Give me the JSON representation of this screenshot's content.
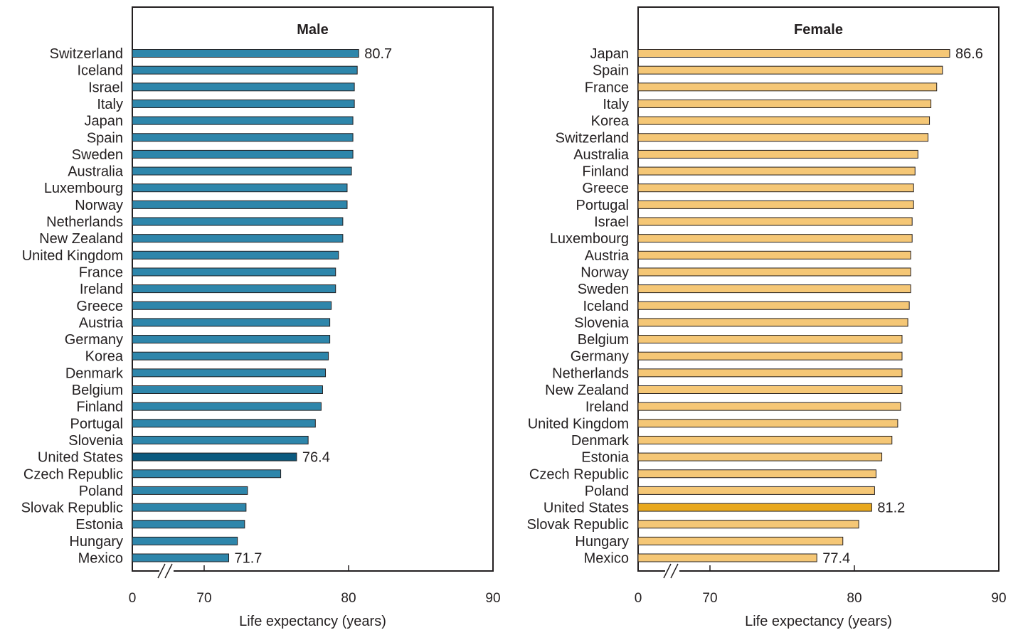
{
  "chart_data": [
    {
      "type": "bar",
      "orientation": "horizontal",
      "title": "Male",
      "xlabel": "Life expectancy (years)",
      "xlim": [
        0,
        90
      ],
      "axis_break": true,
      "x_ticks": [
        "0",
        "70",
        "80",
        "90"
      ],
      "color": "#2e86ab",
      "highlight_color": "#0b5a7f",
      "highlight": "United States",
      "categories": [
        "Switzerland",
        "Iceland",
        "Israel",
        "Italy",
        "Japan",
        "Spain",
        "Sweden",
        "Australia",
        "Luxembourg",
        "Norway",
        "Netherlands",
        "New Zealand",
        "United Kingdom",
        "France",
        "Ireland",
        "Greece",
        "Austria",
        "Germany",
        "Korea",
        "Denmark",
        "Belgium",
        "Finland",
        "Portugal",
        "Slovenia",
        "United States",
        "Czech Republic",
        "Poland",
        "Slovak Republic",
        "Estonia",
        "Hungary",
        "Mexico"
      ],
      "values": [
        80.7,
        80.6,
        80.4,
        80.4,
        80.3,
        80.3,
        80.3,
        80.2,
        79.9,
        79.9,
        79.6,
        79.6,
        79.3,
        79.1,
        79.1,
        78.8,
        78.7,
        78.7,
        78.6,
        78.4,
        78.2,
        78.1,
        77.7,
        77.2,
        76.4,
        75.3,
        73.0,
        72.9,
        72.8,
        72.3,
        71.7
      ],
      "data_labels": [
        {
          "category": "Switzerland",
          "text": "80.7"
        },
        {
          "category": "United States",
          "text": "76.4"
        },
        {
          "category": "Mexico",
          "text": "71.7"
        }
      ]
    },
    {
      "type": "bar",
      "orientation": "horizontal",
      "title": "Female",
      "xlabel": "Life expectancy (years)",
      "xlim": [
        0,
        90
      ],
      "axis_break": true,
      "x_ticks": [
        "0",
        "70",
        "80",
        "90"
      ],
      "color": "#f5c776",
      "highlight_color": "#e8a81e",
      "highlight": "United States",
      "categories": [
        "Japan",
        "Spain",
        "France",
        "Italy",
        "Korea",
        "Switzerland",
        "Australia",
        "Finland",
        "Greece",
        "Portugal",
        "Israel",
        "Luxembourg",
        "Austria",
        "Norway",
        "Sweden",
        "Iceland",
        "Slovenia",
        "Belgium",
        "Germany",
        "Netherlands",
        "New Zealand",
        "Ireland",
        "United Kingdom",
        "Denmark",
        "Estonia",
        "Czech Republic",
        "Poland",
        "United States",
        "Slovak Republic",
        "Hungary",
        "Mexico"
      ],
      "values": [
        86.6,
        86.1,
        85.7,
        85.3,
        85.2,
        85.1,
        84.4,
        84.2,
        84.1,
        84.1,
        84.0,
        84.0,
        83.9,
        83.9,
        83.9,
        83.8,
        83.7,
        83.3,
        83.3,
        83.3,
        83.3,
        83.2,
        83.0,
        82.6,
        81.9,
        81.5,
        81.4,
        81.2,
        80.3,
        79.2,
        77.4
      ],
      "data_labels": [
        {
          "category": "Japan",
          "text": "86.6"
        },
        {
          "category": "United States",
          "text": "81.2"
        },
        {
          "category": "Mexico",
          "text": "77.4"
        }
      ]
    }
  ]
}
